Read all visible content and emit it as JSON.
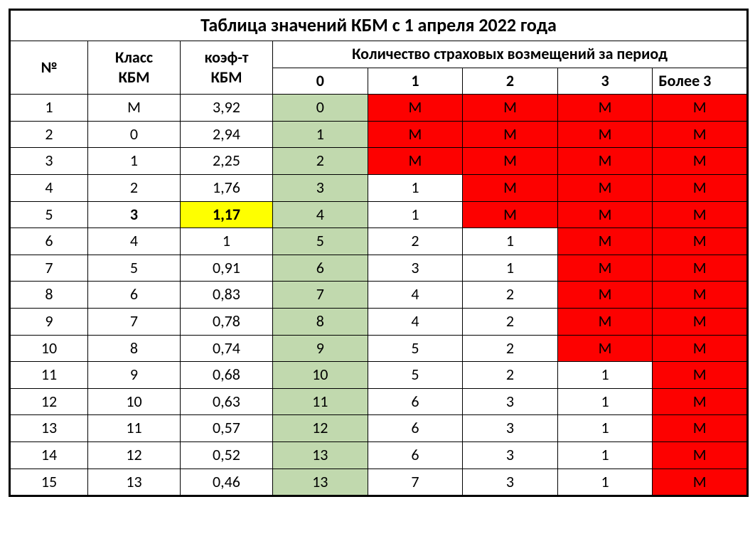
{
  "title": "Таблица значений КБМ с 1 апреля 2022 года",
  "headers": {
    "num": "№",
    "class_line1": "Класс",
    "class_line2": "КБМ",
    "coef_line1": "коэф-т",
    "coef_line2": "КБМ",
    "claims_header": "Количество страховых возмещений за период",
    "sub": [
      "0",
      "1",
      "2",
      "3",
      "Более 3"
    ]
  },
  "colors": {
    "green": "#c1d9ae",
    "red": "#fd0100",
    "yellow": "#feff00",
    "white": "#ffffff",
    "border": "#000000"
  },
  "highlight_row_index": 4,
  "rows": [
    {
      "num": "1",
      "class": "М",
      "coef": "3,92",
      "cells": [
        {
          "v": "0",
          "bg": "green"
        },
        {
          "v": "М",
          "bg": "red"
        },
        {
          "v": "М",
          "bg": "red"
        },
        {
          "v": "М",
          "bg": "red"
        },
        {
          "v": "М",
          "bg": "red"
        }
      ]
    },
    {
      "num": "2",
      "class": "0",
      "coef": "2,94",
      "cells": [
        {
          "v": "1",
          "bg": "green"
        },
        {
          "v": "М",
          "bg": "red"
        },
        {
          "v": "М",
          "bg": "red"
        },
        {
          "v": "М",
          "bg": "red"
        },
        {
          "v": "М",
          "bg": "red"
        }
      ]
    },
    {
      "num": "3",
      "class": "1",
      "coef": "2,25",
      "cells": [
        {
          "v": "2",
          "bg": "green"
        },
        {
          "v": "М",
          "bg": "red"
        },
        {
          "v": "М",
          "bg": "red"
        },
        {
          "v": "М",
          "bg": "red"
        },
        {
          "v": "М",
          "bg": "red"
        }
      ]
    },
    {
      "num": "4",
      "class": "2",
      "coef": "1,76",
      "cells": [
        {
          "v": "3",
          "bg": "green"
        },
        {
          "v": "1",
          "bg": "white"
        },
        {
          "v": "М",
          "bg": "red"
        },
        {
          "v": "М",
          "bg": "red"
        },
        {
          "v": "М",
          "bg": "red"
        }
      ]
    },
    {
      "num": "5",
      "class": "3",
      "coef": "1,17",
      "cells": [
        {
          "v": "4",
          "bg": "green"
        },
        {
          "v": "1",
          "bg": "white"
        },
        {
          "v": "М",
          "bg": "red"
        },
        {
          "v": "М",
          "bg": "red"
        },
        {
          "v": "М",
          "bg": "red"
        }
      ]
    },
    {
      "num": "6",
      "class": "4",
      "coef": "1",
      "cells": [
        {
          "v": "5",
          "bg": "green"
        },
        {
          "v": "2",
          "bg": "white"
        },
        {
          "v": "1",
          "bg": "white"
        },
        {
          "v": "М",
          "bg": "red"
        },
        {
          "v": "М",
          "bg": "red"
        }
      ]
    },
    {
      "num": "7",
      "class": "5",
      "coef": "0,91",
      "cells": [
        {
          "v": "6",
          "bg": "green"
        },
        {
          "v": "3",
          "bg": "white"
        },
        {
          "v": "1",
          "bg": "white"
        },
        {
          "v": "М",
          "bg": "red"
        },
        {
          "v": "М",
          "bg": "red"
        }
      ]
    },
    {
      "num": "8",
      "class": "6",
      "coef": "0,83",
      "cells": [
        {
          "v": "7",
          "bg": "green"
        },
        {
          "v": "4",
          "bg": "white"
        },
        {
          "v": "2",
          "bg": "white"
        },
        {
          "v": "М",
          "bg": "red"
        },
        {
          "v": "М",
          "bg": "red"
        }
      ]
    },
    {
      "num": "9",
      "class": "7",
      "coef": "0,78",
      "cells": [
        {
          "v": "8",
          "bg": "green"
        },
        {
          "v": "4",
          "bg": "white"
        },
        {
          "v": "2",
          "bg": "white"
        },
        {
          "v": "М",
          "bg": "red"
        },
        {
          "v": "М",
          "bg": "red"
        }
      ]
    },
    {
      "num": "10",
      "class": "8",
      "coef": "0,74",
      "cells": [
        {
          "v": "9",
          "bg": "green"
        },
        {
          "v": "5",
          "bg": "white"
        },
        {
          "v": "2",
          "bg": "white"
        },
        {
          "v": "М",
          "bg": "red"
        },
        {
          "v": "М",
          "bg": "red"
        }
      ]
    },
    {
      "num": "11",
      "class": "9",
      "coef": "0,68",
      "cells": [
        {
          "v": "10",
          "bg": "green"
        },
        {
          "v": "5",
          "bg": "white"
        },
        {
          "v": "2",
          "bg": "white"
        },
        {
          "v": "1",
          "bg": "white"
        },
        {
          "v": "М",
          "bg": "red"
        }
      ]
    },
    {
      "num": "12",
      "class": "10",
      "coef": "0,63",
      "cells": [
        {
          "v": "11",
          "bg": "green"
        },
        {
          "v": "6",
          "bg": "white"
        },
        {
          "v": "3",
          "bg": "white"
        },
        {
          "v": "1",
          "bg": "white"
        },
        {
          "v": "М",
          "bg": "red"
        }
      ]
    },
    {
      "num": "13",
      "class": "11",
      "coef": "0,57",
      "cells": [
        {
          "v": "12",
          "bg": "green"
        },
        {
          "v": "6",
          "bg": "white"
        },
        {
          "v": "3",
          "bg": "white"
        },
        {
          "v": "1",
          "bg": "white"
        },
        {
          "v": "М",
          "bg": "red"
        }
      ]
    },
    {
      "num": "14",
      "class": "12",
      "coef": "0,52",
      "cells": [
        {
          "v": "13",
          "bg": "green"
        },
        {
          "v": "6",
          "bg": "white"
        },
        {
          "v": "3",
          "bg": "white"
        },
        {
          "v": "1",
          "bg": "white"
        },
        {
          "v": "М",
          "bg": "red"
        }
      ]
    },
    {
      "num": "15",
      "class": "13",
      "coef": "0,46",
      "cells": [
        {
          "v": "13",
          "bg": "green"
        },
        {
          "v": "7",
          "bg": "white"
        },
        {
          "v": "3",
          "bg": "white"
        },
        {
          "v": "1",
          "bg": "white"
        },
        {
          "v": "М",
          "bg": "red"
        }
      ]
    }
  ]
}
